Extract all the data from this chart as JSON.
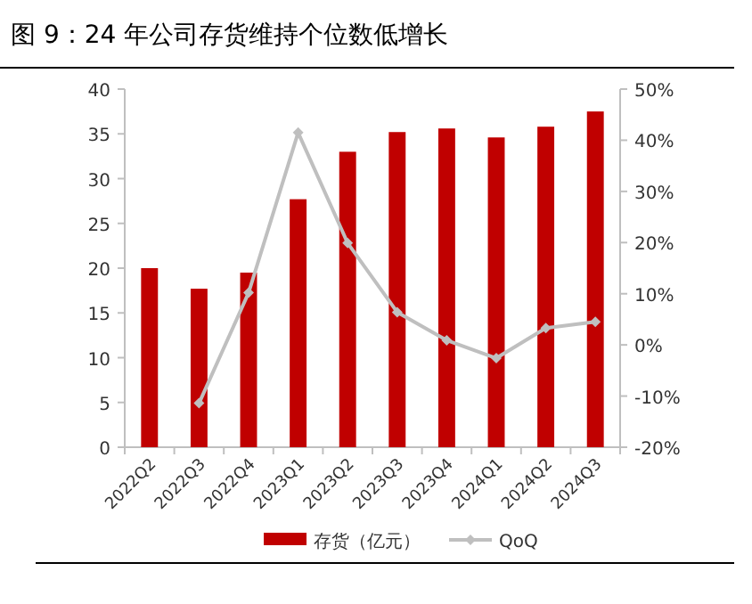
{
  "chart_data": {
    "type": "bar",
    "title": "图 9：24 年公司存货维持个位数低增长",
    "categories": [
      "2022Q2",
      "2022Q3",
      "2022Q4",
      "2023Q1",
      "2023Q2",
      "2023Q3",
      "2023Q4",
      "2024Q1",
      "2024Q2",
      "2024Q3"
    ],
    "series": [
      {
        "name": "存货（亿元）",
        "color": "#c00000",
        "values": [
          20.0,
          17.7,
          19.5,
          27.7,
          33.0,
          35.2,
          35.6,
          34.6,
          35.8,
          37.5
        ]
      },
      {
        "name": "QoQ",
        "type": "line",
        "axis": "y2",
        "color": "#bfbfbf",
        "marker": "diamond",
        "values": [
          null,
          -11.4,
          10.2,
          41.5,
          19.9,
          6.4,
          0.9,
          -2.6,
          3.3,
          4.5
        ]
      }
    ],
    "ylim": [
      0,
      40
    ],
    "yticks": [
      0,
      5,
      10,
      15,
      20,
      25,
      30,
      35,
      40
    ],
    "y2lim": [
      -20,
      50
    ],
    "y2ticks": [
      {
        "value": -20,
        "label": "-20%"
      },
      {
        "value": -10,
        "label": "-10%"
      },
      {
        "value": 0,
        "label": "0%"
      },
      {
        "value": 10,
        "label": "10%"
      },
      {
        "value": 20,
        "label": "20%"
      },
      {
        "value": 30,
        "label": "30%"
      },
      {
        "value": 40,
        "label": "40%"
      },
      {
        "value": 50,
        "label": "50%"
      }
    ],
    "legend": "bottom"
  }
}
